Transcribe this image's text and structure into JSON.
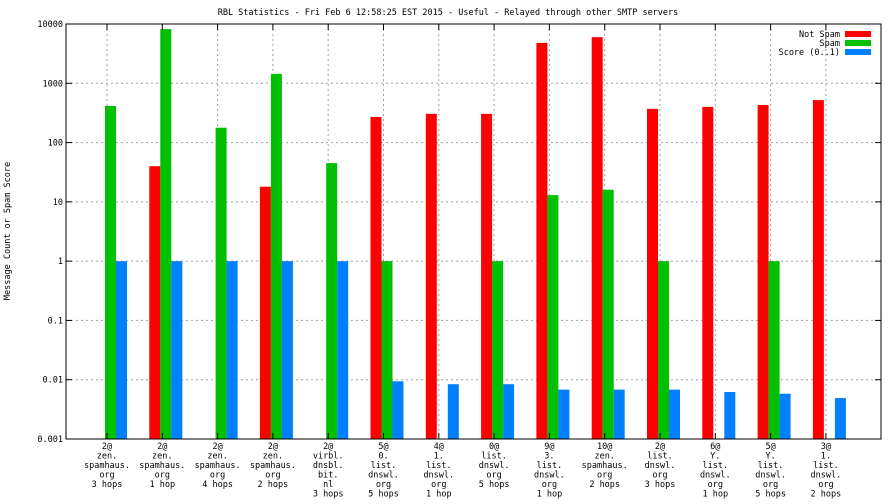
{
  "chart_data": {
    "type": "bar",
    "title": "RBL Statistics - Fri Feb  6 12:58:25 EST 2015 - Useful - Relayed through other SMTP servers",
    "xlabel": "",
    "ylabel": "Message Count or Spam Score",
    "yscale": "log",
    "ylim": [
      0.001,
      10000
    ],
    "yticks": [
      "0.001",
      "0.01",
      "0.1",
      "1",
      "10",
      "100",
      "1000",
      "10000"
    ],
    "grid": true,
    "legend_position": "top-right",
    "categories": [
      [
        "2@",
        "zen.",
        "spamhaus.",
        "org",
        "3 hops"
      ],
      [
        "2@",
        "zen.",
        "spamhaus.",
        "org",
        "1 hop"
      ],
      [
        "2@",
        "zen.",
        "spamhaus.",
        "org",
        "4 hops"
      ],
      [
        "2@",
        "zen.",
        "spamhaus.",
        "org",
        "2 hops"
      ],
      [
        "2@",
        "virbl.",
        "dnsbl.",
        "bit.",
        "nl",
        "3 hops"
      ],
      [
        "5@",
        "0.",
        "list.",
        "dnswl.",
        "org",
        "5 hops"
      ],
      [
        "4@",
        "1.",
        "list.",
        "dnswl.",
        "org",
        "1 hop"
      ],
      [
        "0@",
        "list.",
        "dnswl.",
        "org",
        "5 hops"
      ],
      [
        "9@",
        "3.",
        "list.",
        "dnswl.",
        "org",
        "1 hop"
      ],
      [
        "10@",
        "zen.",
        "spamhaus.",
        "org",
        "2 hops"
      ],
      [
        "2@",
        "list.",
        "dnswl.",
        "org",
        "3 hops"
      ],
      [
        "6@",
        "Y.",
        "list.",
        "dnswl.",
        "org",
        "1 hop"
      ],
      [
        "5@",
        "Y.",
        "list.",
        "dnswl.",
        "org",
        "5 hops"
      ],
      [
        "3@",
        "1.",
        "list.",
        "dnswl.",
        "org",
        "2 hops"
      ]
    ],
    "series": [
      {
        "name": "Not Spam",
        "color": "#ff0000",
        "values": [
          null,
          40,
          null,
          18,
          null,
          270,
          305,
          305,
          4800,
          6000,
          370,
          400,
          430,
          520
        ]
      },
      {
        "name": "Spam",
        "color": "#00c000",
        "values": [
          415,
          8200,
          178,
          1440,
          45,
          1,
          null,
          1,
          13,
          16,
          1,
          null,
          1,
          null
        ]
      },
      {
        "name": "Score (0..1)",
        "color": "#0080ff",
        "values": [
          1,
          1,
          1,
          1,
          1,
          0.0094,
          0.0084,
          0.0084,
          0.0068,
          0.0068,
          0.0068,
          0.0062,
          0.0058,
          0.0049
        ]
      }
    ]
  }
}
